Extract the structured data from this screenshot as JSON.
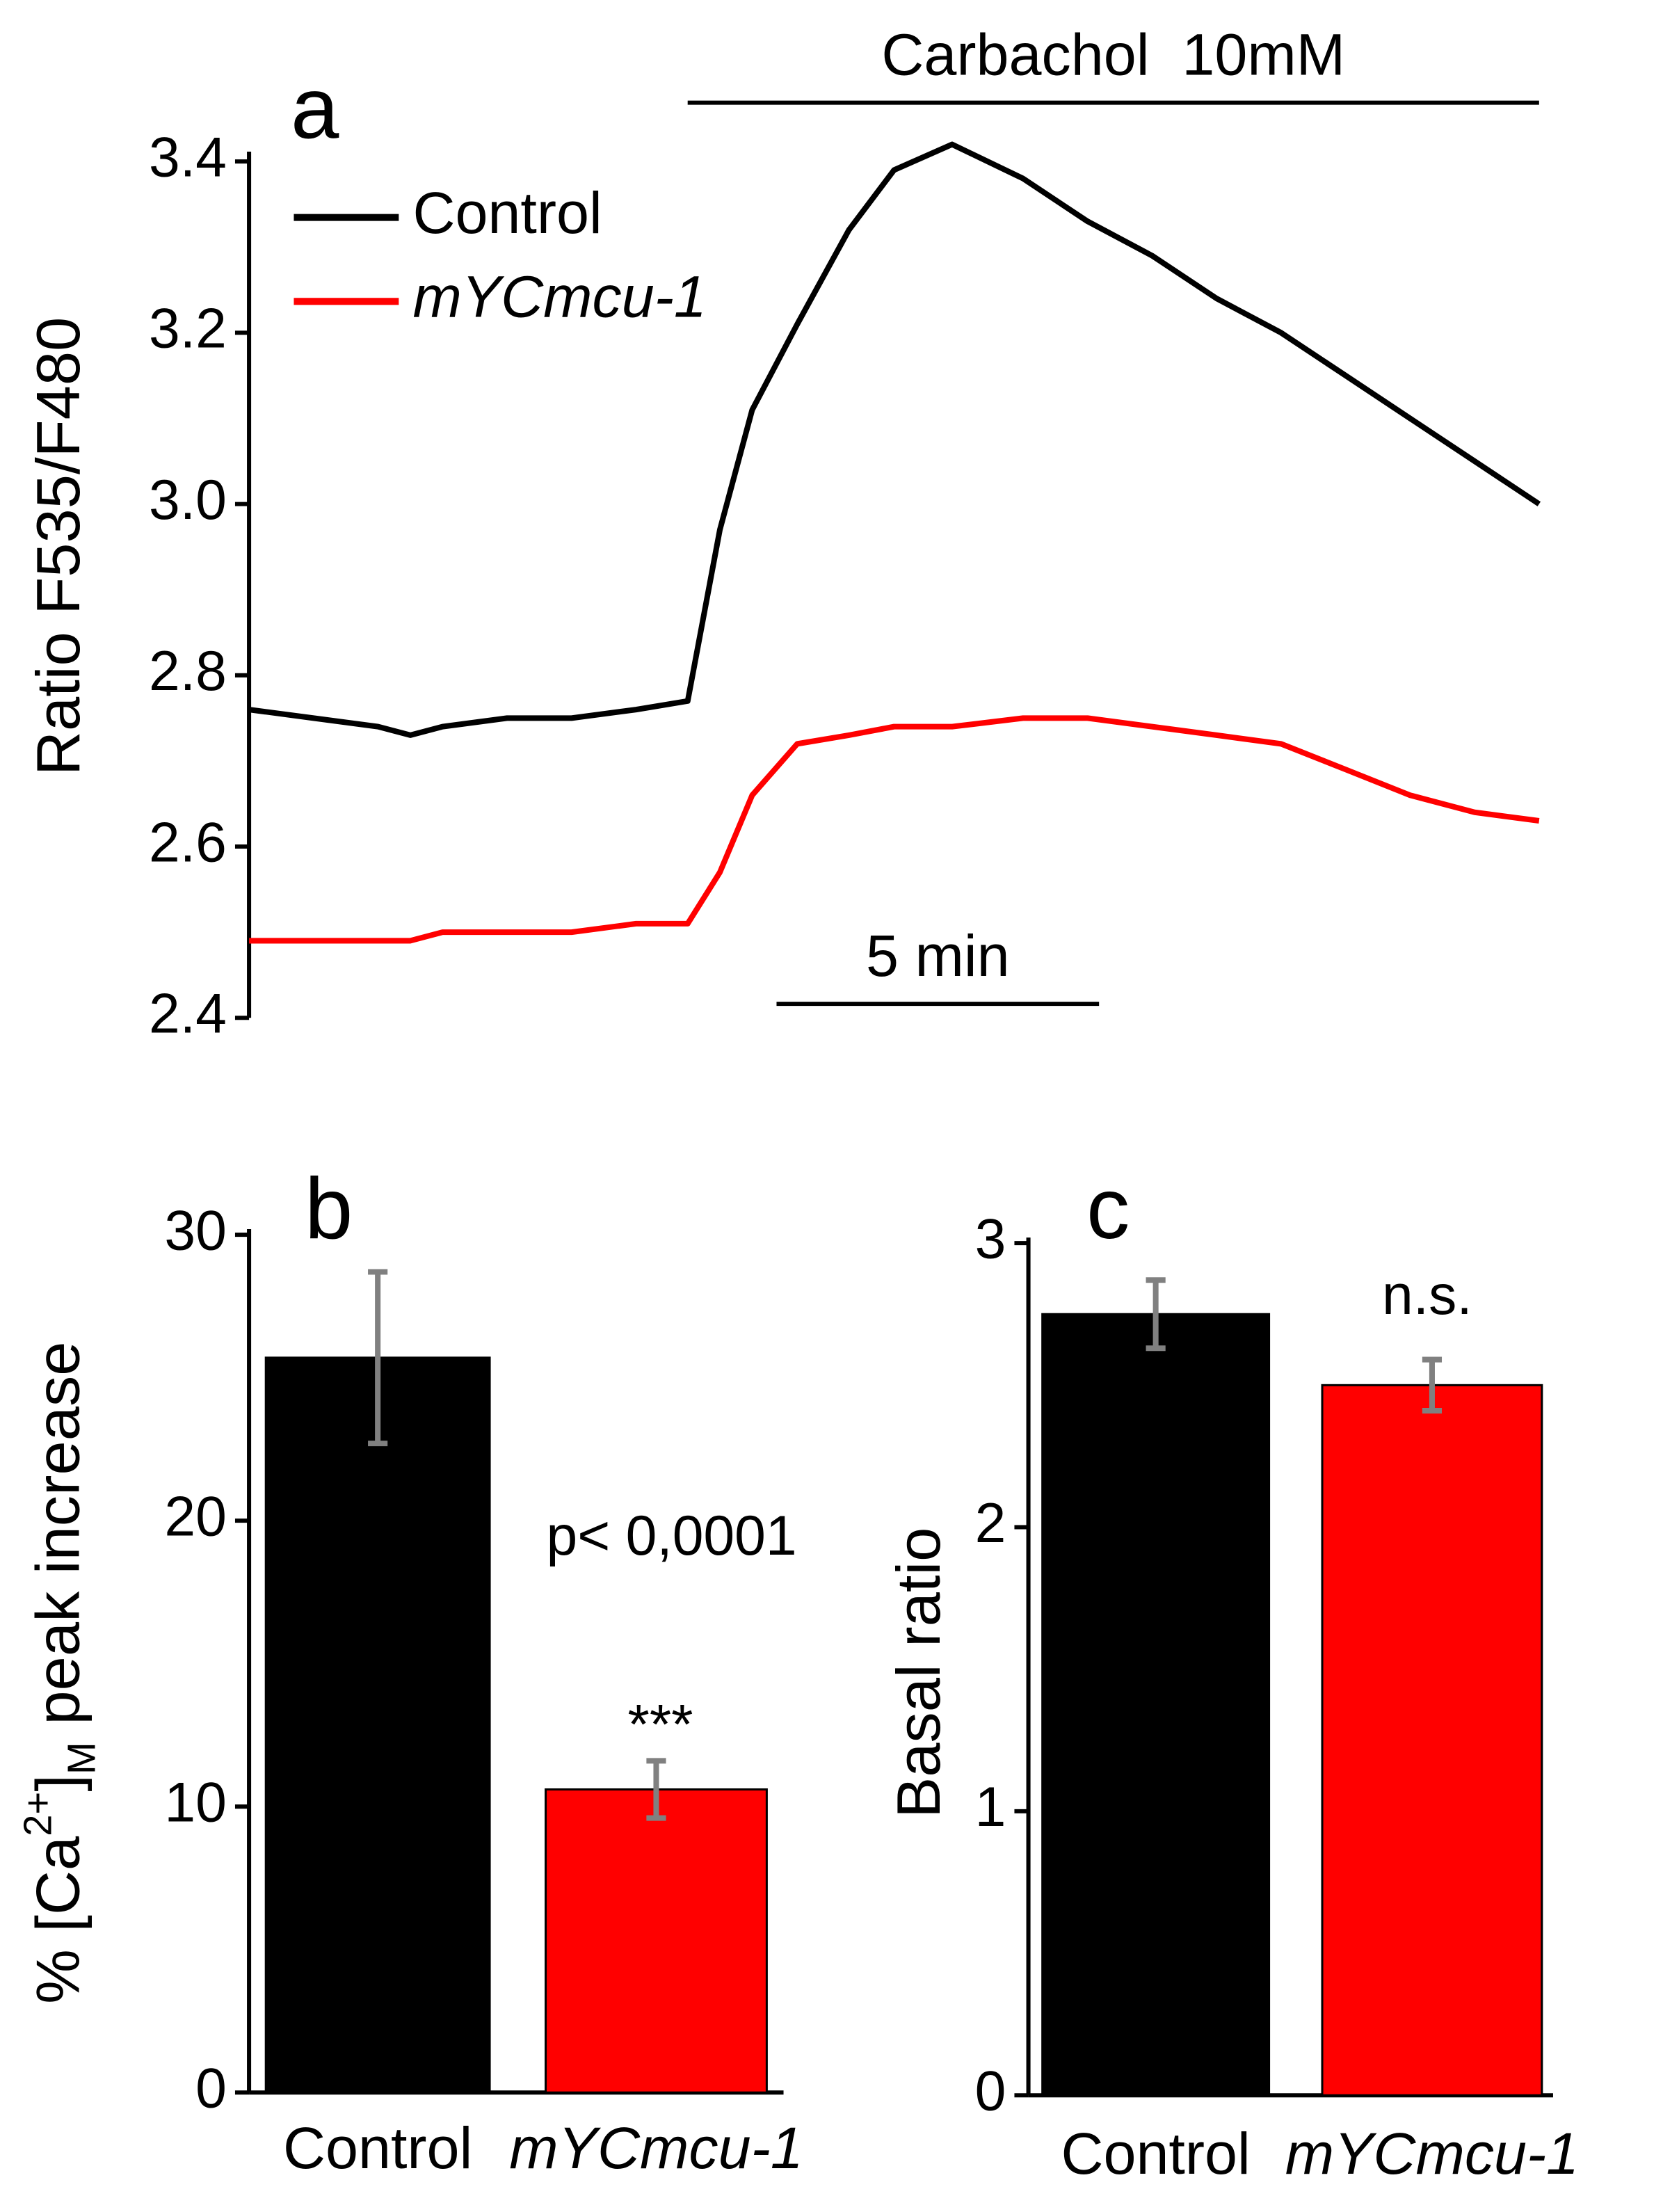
{
  "chart_data": [
    {
      "type": "line",
      "title": "a",
      "ylabel": "Ratio F535/F480",
      "x": [
        0,
        1,
        2,
        2.5,
        3,
        4,
        5,
        6,
        6.8,
        7.3,
        7.8,
        8.5,
        9.3,
        10,
        10.9,
        12,
        13,
        14,
        15,
        16,
        17,
        18,
        19,
        20
      ],
      "xlim": [
        0,
        20
      ],
      "series": [
        {
          "name": "Control",
          "color": "#000000",
          "values": [
            2.76,
            2.75,
            2.74,
            2.73,
            2.74,
            2.75,
            2.75,
            2.76,
            2.77,
            2.97,
            3.11,
            3.21,
            3.32,
            3.39,
            3.42,
            3.38,
            3.33,
            3.29,
            3.24,
            3.2,
            3.15,
            3.1,
            3.05,
            3.0
          ]
        },
        {
          "name": "mYCmcu-1",
          "color": "#ff0000",
          "values": [
            2.49,
            2.49,
            2.49,
            2.49,
            2.5,
            2.5,
            2.5,
            2.51,
            2.51,
            2.57,
            2.66,
            2.72,
            2.73,
            2.74,
            2.74,
            2.75,
            2.75,
            2.74,
            2.73,
            2.72,
            2.69,
            2.66,
            2.64,
            2.63
          ]
        }
      ],
      "ylim": [
        2.4,
        3.4
      ],
      "yticks": [
        2.4,
        2.6,
        2.8,
        {
          "value": 3,
          "label": "3.0"
        },
        3.2,
        3.4
      ],
      "stimulus": {
        "label": "Carbachol  10mM",
        "start": 6.8,
        "end": 20
      },
      "scalebar": {
        "label": "5 min",
        "value": 5
      },
      "legend": "upper left"
    },
    {
      "type": "bar",
      "title": "b",
      "ylabel": [
        "% [Ca",
        "2+",
        "]",
        "M",
        " peak increase"
      ],
      "categories": [
        "Control",
        "mYCmcu-1"
      ],
      "values": [
        25.7,
        10.6
      ],
      "errors": [
        3.0,
        1.0
      ],
      "colors": [
        "#000000",
        "#ff0000"
      ],
      "error_color": "#808080",
      "ylim": [
        0,
        30
      ],
      "yticks": [
        0,
        10,
        20,
        30
      ],
      "annotations": [
        "p< 0,0001",
        "***"
      ]
    },
    {
      "type": "bar",
      "title": "c",
      "ylabel": "Basal ratio",
      "categories": [
        "Control",
        "mYCmcu-1"
      ],
      "values": [
        2.75,
        2.5
      ],
      "errors": [
        0.12,
        0.09
      ],
      "colors": [
        "#000000",
        "#ff0000"
      ],
      "error_color": "#808080",
      "ylim": [
        0,
        3
      ],
      "yticks": [
        0,
        1,
        2,
        3
      ],
      "annotations": [
        "n.s."
      ]
    }
  ]
}
